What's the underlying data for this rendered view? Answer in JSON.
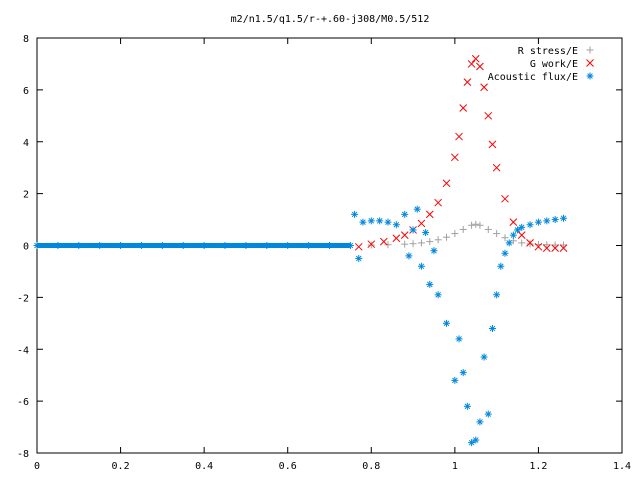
{
  "chart_data": {
    "type": "scatter",
    "title": "m2/n1.5/q1.5/r-+.60-j308/M0.5/512",
    "xlabel": "",
    "ylabel": "",
    "xlim": [
      0,
      1.4
    ],
    "ylim": [
      -8,
      8
    ],
    "x_ticks": [
      "0",
      "0.2",
      "0.4",
      "0.6",
      "0.8",
      "1",
      "1.2",
      "1.4"
    ],
    "y_ticks": [
      "8",
      "6",
      "4",
      "2",
      "0",
      "-2",
      "-4",
      "-6",
      "-8"
    ],
    "grid": false,
    "legend_position": "top-right",
    "series": [
      {
        "name": "R stress/E",
        "marker": "plus",
        "color": "#a0a0a0",
        "x": [
          0.8,
          0.84,
          0.88,
          0.9,
          0.92,
          0.94,
          0.96,
          0.98,
          1.0,
          1.02,
          1.04,
          1.05,
          1.06,
          1.08,
          1.1,
          1.12,
          1.14,
          1.16,
          1.18,
          1.2,
          1.22,
          1.24,
          1.26
        ],
        "y": [
          0.02,
          0.03,
          0.05,
          0.07,
          0.1,
          0.15,
          0.22,
          0.32,
          0.46,
          0.62,
          0.78,
          0.82,
          0.78,
          0.62,
          0.46,
          0.3,
          0.18,
          0.1,
          0.06,
          0.04,
          0.03,
          0.02,
          0.02
        ]
      },
      {
        "name": "G work/E",
        "marker": "x",
        "color": "#ff0000",
        "x": [
          0.77,
          0.8,
          0.83,
          0.86,
          0.88,
          0.9,
          0.92,
          0.94,
          0.96,
          0.98,
          1.0,
          1.01,
          1.02,
          1.03,
          1.04,
          1.05,
          1.06,
          1.07,
          1.08,
          1.09,
          1.1,
          1.12,
          1.14,
          1.16,
          1.18,
          1.2,
          1.22,
          1.24,
          1.26
        ],
        "y": [
          -0.05,
          0.05,
          0.15,
          0.28,
          0.4,
          0.6,
          0.85,
          1.2,
          1.65,
          2.4,
          3.4,
          4.2,
          5.3,
          6.3,
          7.0,
          7.2,
          6.9,
          6.1,
          5.0,
          3.9,
          3.0,
          1.8,
          0.9,
          0.4,
          0.1,
          -0.05,
          -0.1,
          -0.1,
          -0.1
        ]
      },
      {
        "name": "Acoustic flux/E",
        "marker": "star",
        "color": "#0088dd",
        "x": [
          0.0,
          0.05,
          0.1,
          0.15,
          0.2,
          0.25,
          0.3,
          0.35,
          0.4,
          0.45,
          0.5,
          0.55,
          0.6,
          0.65,
          0.7,
          0.75,
          0.76,
          0.77,
          0.78,
          0.8,
          0.82,
          0.84,
          0.86,
          0.88,
          0.89,
          0.9,
          0.91,
          0.92,
          0.93,
          0.94,
          0.95,
          0.96,
          0.98,
          1.0,
          1.01,
          1.02,
          1.03,
          1.04,
          1.05,
          1.06,
          1.07,
          1.08,
          1.09,
          1.1,
          1.11,
          1.12,
          1.13,
          1.14,
          1.15,
          1.16,
          1.18,
          1.2,
          1.22,
          1.24,
          1.26
        ],
        "y": [
          0.0,
          0.0,
          0.0,
          0.0,
          0.0,
          0.0,
          0.0,
          0.0,
          0.0,
          0.0,
          0.0,
          0.0,
          0.0,
          0.0,
          0.0,
          0.0,
          1.2,
          -0.5,
          0.9,
          0.95,
          0.95,
          0.9,
          0.8,
          1.2,
          -0.4,
          0.6,
          1.4,
          -0.8,
          0.5,
          -1.5,
          -0.2,
          -1.9,
          -3.0,
          -5.2,
          -3.6,
          -4.9,
          -6.2,
          -7.6,
          -7.5,
          -6.8,
          -4.3,
          -6.5,
          -3.2,
          -1.9,
          -0.8,
          -0.3,
          0.1,
          0.4,
          0.6,
          0.7,
          0.8,
          0.9,
          0.95,
          1.0,
          1.05
        ]
      }
    ]
  }
}
